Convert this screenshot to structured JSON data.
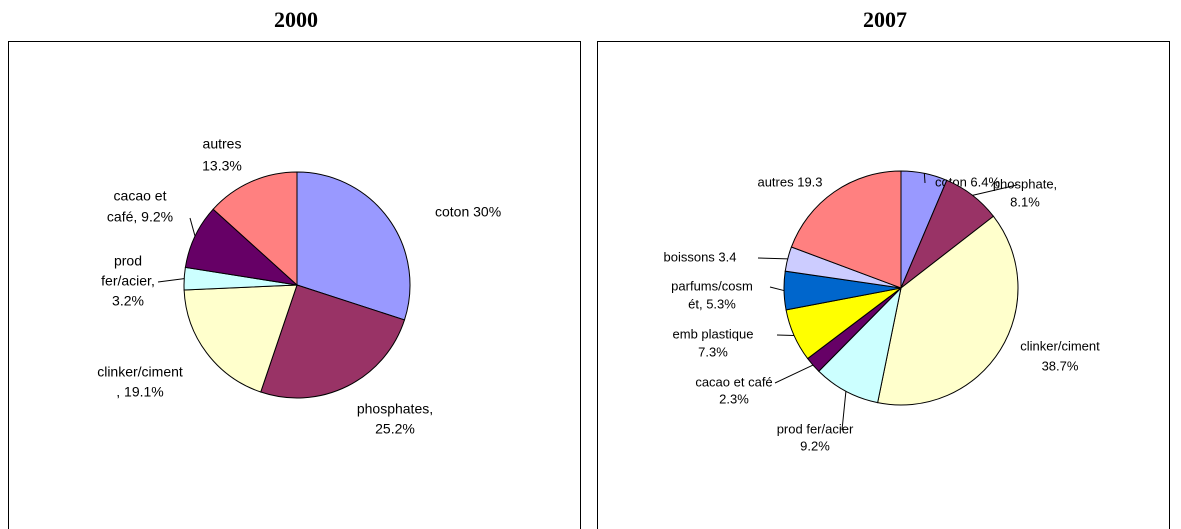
{
  "chart_data": [
    {
      "type": "pie",
      "title": "2000",
      "values": [
        30,
        25.2,
        19.1,
        3.2,
        9.2,
        13.3
      ],
      "value_labels": [
        [
          "coton  30%"
        ],
        [
          "phosphates,",
          "25.2%"
        ],
        [
          "clinker/ciment",
          ", 19.1%"
        ],
        [
          "prod",
          "fer/acier,",
          "3.2%"
        ],
        [
          "cacao et",
          "café, 9.2%"
        ],
        [
          "autres",
          "13.3%"
        ]
      ],
      "colors": [
        "#9999ff",
        "#993366",
        "#ffffcc",
        "#ccffff",
        "#660066",
        "#ff8080"
      ]
    },
    {
      "type": "pie",
      "title": "2007",
      "values": [
        6.4,
        8.1,
        38.7,
        9.2,
        2.3,
        7.3,
        5.3,
        3.4,
        19.3
      ],
      "value_labels": [
        [
          "coton 6.4%"
        ],
        [
          "phosphate,",
          "8.1%"
        ],
        [
          "clinker/ciment",
          "38.7%"
        ],
        [
          "prod fer/acier",
          "9.2%"
        ],
        [
          "cacao et café",
          "2.3%"
        ],
        [
          "emb plastique",
          "7.3%"
        ],
        [
          "parfums/cosm",
          "ét, 5.3%"
        ],
        [
          "boissons  3.4"
        ],
        [
          "autres 19.3"
        ]
      ],
      "colors": [
        "#9999ff",
        "#993366",
        "#ffffcc",
        "#ccffff",
        "#660066",
        "#ffff00",
        "#0066cc",
        "#ccccff",
        "#ff8080"
      ]
    }
  ]
}
